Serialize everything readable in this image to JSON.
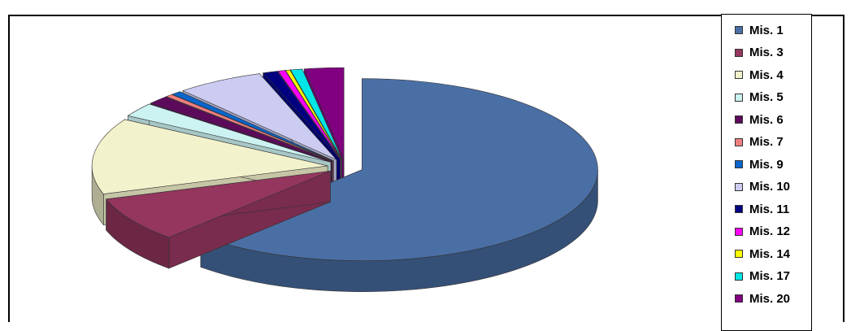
{
  "chart_data": {
    "type": "pie",
    "style": "3d-exploded",
    "legend_position": "right",
    "slices": [
      {
        "label": "Mis. 1",
        "value": 62.0,
        "color": "#4A6FA5",
        "exploded": true
      },
      {
        "label": "Mis. 3",
        "value": 8.0,
        "color": "#94365E",
        "exploded": true
      },
      {
        "label": "Mis. 4",
        "value": 13.5,
        "color": "#F2F2CC",
        "exploded": true
      },
      {
        "label": "Mis. 5",
        "value": 2.5,
        "color": "#CCF2F2",
        "exploded": true
      },
      {
        "label": "Mis. 6",
        "value": 1.5,
        "color": "#5C0A5C",
        "exploded": true
      },
      {
        "label": "Mis. 7",
        "value": 0.5,
        "color": "#F08080",
        "exploded": true
      },
      {
        "label": "Mis. 9",
        "value": 0.7,
        "color": "#0A66CC",
        "exploded": true
      },
      {
        "label": "Mis. 10",
        "value": 6.0,
        "color": "#CCCCF2",
        "exploded": true
      },
      {
        "label": "Mis. 11",
        "value": 1.0,
        "color": "#000080",
        "exploded": true
      },
      {
        "label": "Mis. 12",
        "value": 0.5,
        "color": "#FF00FF",
        "exploded": true
      },
      {
        "label": "Mis. 14",
        "value": 0.3,
        "color": "#FFFF00",
        "exploded": true
      },
      {
        "label": "Mis. 17",
        "value": 0.8,
        "color": "#00E5E5",
        "exploded": true
      },
      {
        "label": "Mis. 20",
        "value": 2.7,
        "color": "#800080",
        "exploded": true
      }
    ]
  }
}
